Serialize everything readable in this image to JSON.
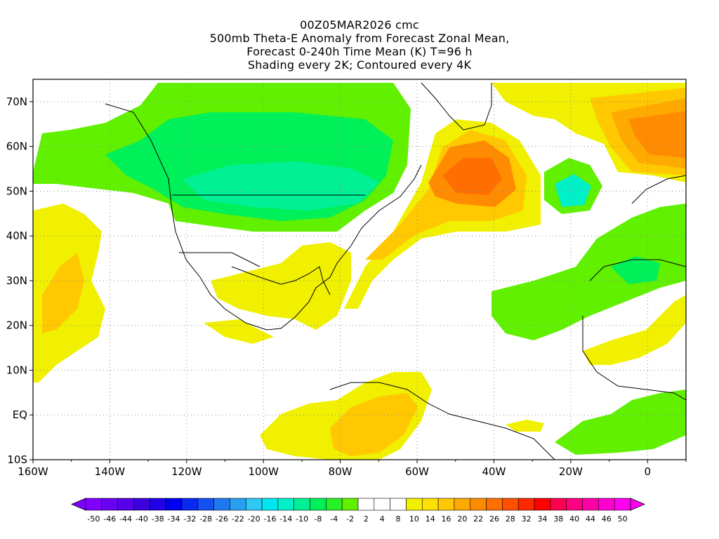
{
  "header": {
    "line1": "00Z05MAR2026 cmc",
    "line2": "500mb Theta-E Anomaly from Forecast Zonal Mean,",
    "line3": "Forecast 0-240h Time Mean (K) T=96 h",
    "line4": "Shading every 2K; Contoured every 4K"
  },
  "map": {
    "lon_ticks": [
      "160W",
      "140W",
      "120W",
      "100W",
      "80W",
      "60W",
      "40W",
      "20W",
      "0"
    ],
    "lat_ticks": [
      "70N",
      "60N",
      "50N",
      "40N",
      "30N",
      "20N",
      "10N",
      "EQ",
      "10S"
    ],
    "extent": {
      "lon_min": -160,
      "lon_max": 10,
      "lat_min": -10,
      "lat_max": 75
    }
  },
  "colorbar": {
    "labels": [
      "-50",
      "-46",
      "-44",
      "-40",
      "-38",
      "-34",
      "-32",
      "-28",
      "-26",
      "-22",
      "-20",
      "-16",
      "-14",
      "-10",
      "-8",
      "-4",
      "-2",
      "2",
      "4",
      "8",
      "10",
      "14",
      "16",
      "20",
      "22",
      "26",
      "28",
      "32",
      "34",
      "38",
      "40",
      "44",
      "46",
      "50"
    ],
    "colors": [
      "#8000ff",
      "#6a00f0",
      "#5500e8",
      "#3c00e0",
      "#2000e8",
      "#0000f0",
      "#0a28f0",
      "#1450f0",
      "#1e78f0",
      "#28a0f0",
      "#2fc8f5",
      "#00e6f0",
      "#00f0c8",
      "#00f096",
      "#00f05a",
      "#28f028",
      "#60f000",
      "#ffffff",
      "#ffffff",
      "#ffffff",
      "#f0f000",
      "#ffe000",
      "#ffc800",
      "#ffaa00",
      "#ff8c00",
      "#ff6e00",
      "#ff5000",
      "#ff2800",
      "#ff0000",
      "#ff0050",
      "#ff0080",
      "#ff00a8",
      "#ff00d0",
      "#ff00f0"
    ]
  }
}
